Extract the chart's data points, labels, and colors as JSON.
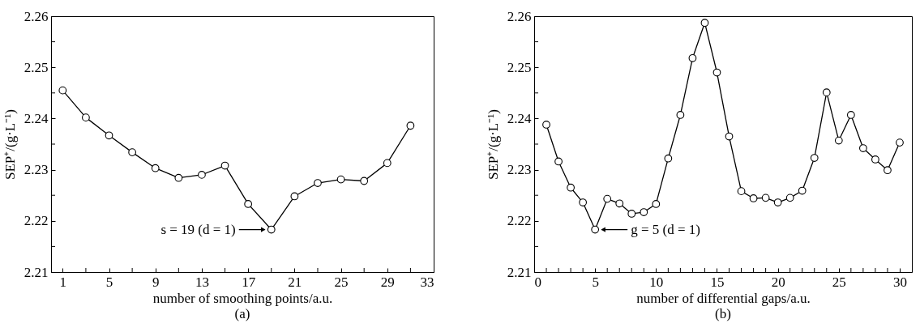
{
  "chart_data": [
    {
      "type": "line",
      "title": "(a)",
      "xlabel": "number of smoothing points/a.u.",
      "ylabel": "SEP⁺/(g·L⁻¹)",
      "marker": "circle",
      "grid": false,
      "xlim": [
        0,
        33
      ],
      "xticks": [
        1,
        {
          "value": 3,
          "label": null
        },
        5,
        {
          "value": 7,
          "label": null
        },
        9,
        {
          "value": 11,
          "label": null
        },
        13,
        {
          "value": 15,
          "label": null
        },
        17,
        {
          "value": 19,
          "label": null
        },
        21,
        {
          "value": 23,
          "label": null
        },
        25,
        {
          "value": 27,
          "label": null
        },
        29,
        {
          "value": 31,
          "label": null
        },
        33
      ],
      "ylim": [
        2.21,
        2.26
      ],
      "yticks": [
        2.21,
        {
          "value": 2.215,
          "label": null
        },
        2.22,
        {
          "value": 2.225,
          "label": null
        },
        2.23,
        {
          "value": 2.235,
          "label": null
        },
        2.24,
        {
          "value": 2.245,
          "label": null
        },
        2.25,
        {
          "value": 2.255,
          "label": null
        },
        2.26
      ],
      "x": [
        1,
        3,
        5,
        7,
        9,
        11,
        13,
        15,
        17,
        19,
        21,
        23,
        25,
        27,
        29,
        31
      ],
      "series": [
        {
          "color": "#000000",
          "values": [
            2.2455,
            2.2402,
            2.2367,
            2.2334,
            2.2303,
            2.2284,
            2.229,
            2.2308,
            2.2233,
            2.2183,
            2.2248,
            2.2274,
            2.2281,
            2.2278,
            2.2313,
            2.2386
          ]
        }
      ],
      "annotations": [
        {
          "text": "s = 19 (d = 1)",
          "x": 19,
          "y": 2.2183
        }
      ]
    },
    {
      "type": "line",
      "title": "(b)",
      "xlabel": "number of differential gaps/a.u.",
      "ylabel": "SEP⁺/(g·L⁻¹)",
      "marker": "circle",
      "grid": false,
      "xlim": [
        0,
        31
      ],
      "xticks": [
        0,
        {
          "value": 1,
          "label": null
        },
        {
          "value": 2,
          "label": null
        },
        {
          "value": 3,
          "label": null
        },
        {
          "value": 4,
          "label": null
        },
        5,
        {
          "value": 6,
          "label": null
        },
        {
          "value": 7,
          "label": null
        },
        {
          "value": 8,
          "label": null
        },
        {
          "value": 9,
          "label": null
        },
        10,
        {
          "value": 11,
          "label": null
        },
        {
          "value": 12,
          "label": null
        },
        {
          "value": 13,
          "label": null
        },
        {
          "value": 14,
          "label": null
        },
        15,
        {
          "value": 16,
          "label": null
        },
        {
          "value": 17,
          "label": null
        },
        {
          "value": 18,
          "label": null
        },
        {
          "value": 19,
          "label": null
        },
        20,
        {
          "value": 21,
          "label": null
        },
        {
          "value": 22,
          "label": null
        },
        {
          "value": 23,
          "label": null
        },
        {
          "value": 24,
          "label": null
        },
        25,
        {
          "value": 26,
          "label": null
        },
        {
          "value": 27,
          "label": null
        },
        {
          "value": 28,
          "label": null
        },
        {
          "value": 29,
          "label": null
        },
        30
      ],
      "ylim": [
        2.21,
        2.26
      ],
      "yticks": [
        2.21,
        {
          "value": 2.215,
          "label": null
        },
        2.22,
        {
          "value": 2.225,
          "label": null
        },
        2.23,
        {
          "value": 2.235,
          "label": null
        },
        2.24,
        {
          "value": 2.245,
          "label": null
        },
        2.25,
        {
          "value": 2.255,
          "label": null
        },
        2.26
      ],
      "x": [
        1,
        2,
        3,
        4,
        5,
        6,
        7,
        8,
        9,
        10,
        11,
        12,
        13,
        14,
        15,
        16,
        17,
        18,
        19,
        20,
        21,
        22,
        23,
        24,
        25,
        26,
        27,
        28,
        29,
        30
      ],
      "series": [
        {
          "color": "#000000",
          "values": [
            2.2388,
            2.2316,
            2.2265,
            2.2236,
            2.2183,
            2.2243,
            2.2234,
            2.2214,
            2.2217,
            2.2233,
            2.2322,
            2.2407,
            2.2518,
            2.2587,
            2.249,
            2.2365,
            2.2258,
            2.2244,
            2.2245,
            2.2236,
            2.2245,
            2.2259,
            2.2323,
            2.2451,
            2.2357,
            2.2407,
            2.2342,
            2.232,
            2.2299,
            2.2353
          ]
        }
      ],
      "annotations": [
        {
          "text": "g = 5 (d = 1)",
          "x": 5,
          "y": 2.2183
        }
      ]
    }
  ]
}
